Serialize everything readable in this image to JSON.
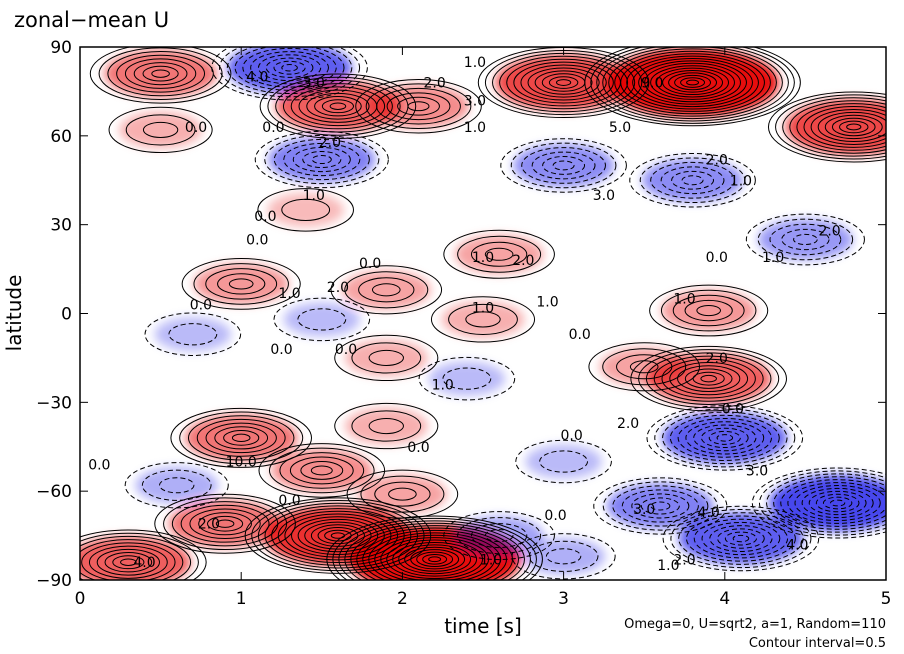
{
  "chart_data": {
    "type": "heatmap",
    "title": "zonal−mean U",
    "xlabel": "time [s]",
    "ylabel": "latitude",
    "xlim": [
      0,
      5
    ],
    "ylim": [
      -90,
      90
    ],
    "xticks": [
      "0",
      "1",
      "2",
      "3",
      "4",
      "5"
    ],
    "yticks": [
      "90",
      "60",
      "30",
      "0",
      "−30",
      "−60",
      "−90"
    ],
    "xtick_values": [
      0,
      1,
      2,
      3,
      4,
      5
    ],
    "ytick_values": [
      90,
      60,
      30,
      0,
      -30,
      -60,
      -90
    ],
    "note_line1": "Omega=0, U=sqrt2, a=1, Random=110",
    "note_line2": "Contour interval=0.5",
    "colors": {
      "positive": "#e60000",
      "negative": "#0000e6",
      "neutral": "#ffffff"
    },
    "features": [
      {
        "t": 0.5,
        "lat": 81,
        "value": 4.0
      },
      {
        "t": 1.3,
        "lat": 83,
        "value": -5.0
      },
      {
        "t": 1.6,
        "lat": 70,
        "value": 5.0
      },
      {
        "t": 2.1,
        "lat": 70,
        "value": 3.0
      },
      {
        "t": 3.0,
        "lat": 78,
        "value": 6.0
      },
      {
        "t": 3.8,
        "lat": 78,
        "value": 9.0
      },
      {
        "t": 4.8,
        "lat": 63,
        "value": 6.0
      },
      {
        "t": 1.5,
        "lat": 52,
        "value": -3.5
      },
      {
        "t": 3.0,
        "lat": 50,
        "value": -3.0
      },
      {
        "t": 3.8,
        "lat": 45,
        "value": -3.0
      },
      {
        "t": 0.5,
        "lat": 62,
        "value": 1.5
      },
      {
        "t": 1.4,
        "lat": 35,
        "value": 1.0
      },
      {
        "t": 4.5,
        "lat": 25,
        "value": -2.5
      },
      {
        "t": 2.6,
        "lat": 20,
        "value": 2.0
      },
      {
        "t": 1.0,
        "lat": 10,
        "value": 2.5
      },
      {
        "t": 1.9,
        "lat": 8,
        "value": 2.0
      },
      {
        "t": 2.5,
        "lat": -2,
        "value": 1.5
      },
      {
        "t": 3.9,
        "lat": 1,
        "value": 2.5
      },
      {
        "t": 1.5,
        "lat": -2,
        "value": -1.0
      },
      {
        "t": 0.7,
        "lat": -7,
        "value": -1.0
      },
      {
        "t": 1.9,
        "lat": -15,
        "value": 1.5
      },
      {
        "t": 2.4,
        "lat": -22,
        "value": -1.0
      },
      {
        "t": 3.9,
        "lat": -22,
        "value": 5.0
      },
      {
        "t": 3.5,
        "lat": -18,
        "value": 2.0
      },
      {
        "t": 1.0,
        "lat": -42,
        "value": 4.0
      },
      {
        "t": 1.9,
        "lat": -38,
        "value": 1.5
      },
      {
        "t": 4.0,
        "lat": -42,
        "value": -5.0
      },
      {
        "t": 3.0,
        "lat": -50,
        "value": -1.0
      },
      {
        "t": 1.5,
        "lat": -53,
        "value": 3.0
      },
      {
        "t": 2.0,
        "lat": -61,
        "value": 2.0
      },
      {
        "t": 4.7,
        "lat": -64,
        "value": -6.0
      },
      {
        "t": 3.6,
        "lat": -65,
        "value": -3.5
      },
      {
        "t": 1.6,
        "lat": -75,
        "value": 7.0
      },
      {
        "t": 2.2,
        "lat": -83,
        "value": 9.0
      },
      {
        "t": 0.9,
        "lat": -71,
        "value": 4.0
      },
      {
        "t": 0.3,
        "lat": -84,
        "value": 5.0
      },
      {
        "t": 4.1,
        "lat": -76,
        "value": -5.0
      },
      {
        "t": 3.0,
        "lat": -82,
        "value": -1.5
      },
      {
        "t": 0.6,
        "lat": -58,
        "value": -1.5
      },
      {
        "t": 2.6,
        "lat": -75,
        "value": -2.0
      }
    ],
    "contour_labels": [
      {
        "text": "1.0",
        "t": 2.45,
        "lat": 85
      },
      {
        "text": "4.0",
        "t": 1.1,
        "lat": 80
      },
      {
        "text": "3.0",
        "t": 1.45,
        "lat": 78
      },
      {
        "text": "2.0",
        "t": 2.2,
        "lat": 78
      },
      {
        "text": "9.0",
        "t": 3.55,
        "lat": 78
      },
      {
        "text": "3.0",
        "t": 2.45,
        "lat": 72
      },
      {
        "text": "1.0",
        "t": 2.45,
        "lat": 63
      },
      {
        "text": "5.0",
        "t": 3.35,
        "lat": 63
      },
      {
        "text": "0.0",
        "t": 0.72,
        "lat": 63
      },
      {
        "text": "0.0",
        "t": 1.2,
        "lat": 63
      },
      {
        "text": "2.0",
        "t": 1.55,
        "lat": 58
      },
      {
        "text": "2.0",
        "t": 3.95,
        "lat": 52
      },
      {
        "text": "1.0",
        "t": 4.1,
        "lat": 45
      },
      {
        "text": "3.0",
        "t": 3.25,
        "lat": 40
      },
      {
        "text": "1.0",
        "t": 1.45,
        "lat": 40
      },
      {
        "text": "0.0",
        "t": 1.15,
        "lat": 33
      },
      {
        "text": "0.0",
        "t": 1.1,
        "lat": 25
      },
      {
        "text": "2.0",
        "t": 4.65,
        "lat": 28
      },
      {
        "text": "0.0",
        "t": 1.8,
        "lat": 17
      },
      {
        "text": "1.0",
        "t": 2.5,
        "lat": 19
      },
      {
        "text": "2.0",
        "t": 2.75,
        "lat": 18
      },
      {
        "text": "0.0",
        "t": 3.95,
        "lat": 19
      },
      {
        "text": "1.0",
        "t": 4.3,
        "lat": 19
      },
      {
        "text": "2.0",
        "t": 1.6,
        "lat": 9
      },
      {
        "text": "1.0",
        "t": 1.3,
        "lat": 7
      },
      {
        "text": "0.0",
        "t": 0.75,
        "lat": 3
      },
      {
        "text": "1.0",
        "t": 2.5,
        "lat": 2
      },
      {
        "text": "1.0",
        "t": 2.9,
        "lat": 4
      },
      {
        "text": "1.0",
        "t": 3.75,
        "lat": 5
      },
      {
        "text": "0.0",
        "t": 1.25,
        "lat": -12
      },
      {
        "text": "0.0",
        "t": 1.65,
        "lat": -12
      },
      {
        "text": "0.0",
        "t": 3.1,
        "lat": -7
      },
      {
        "text": "2.0",
        "t": 3.95,
        "lat": -15
      },
      {
        "text": "1.0",
        "t": 2.25,
        "lat": -24
      },
      {
        "text": "0.0",
        "t": 4.05,
        "lat": -32
      },
      {
        "text": "2.0",
        "t": 3.4,
        "lat": -37
      },
      {
        "text": "0.0",
        "t": 3.05,
        "lat": -41
      },
      {
        "text": "0.0",
        "t": 2.1,
        "lat": -45
      },
      {
        "text": "10.0",
        "t": 1.0,
        "lat": -50
      },
      {
        "text": "0.0",
        "t": 0.12,
        "lat": -51
      },
      {
        "text": "3.0",
        "t": 4.2,
        "lat": -53
      },
      {
        "text": "0.0",
        "t": 1.3,
        "lat": -63
      },
      {
        "text": "3.0",
        "t": 3.5,
        "lat": -66
      },
      {
        "text": "4.0",
        "t": 3.9,
        "lat": -67
      },
      {
        "text": "0.0",
        "t": 2.95,
        "lat": -68
      },
      {
        "text": "2.0",
        "t": 0.8,
        "lat": -71
      },
      {
        "text": "4.0",
        "t": 4.45,
        "lat": -78
      },
      {
        "text": "2.0",
        "t": 3.75,
        "lat": -83
      },
      {
        "text": "1.0",
        "t": 3.65,
        "lat": -85
      },
      {
        "text": "4.0",
        "t": 0.4,
        "lat": -84
      },
      {
        "text": "1.0",
        "t": 2.55,
        "lat": -83
      }
    ]
  }
}
